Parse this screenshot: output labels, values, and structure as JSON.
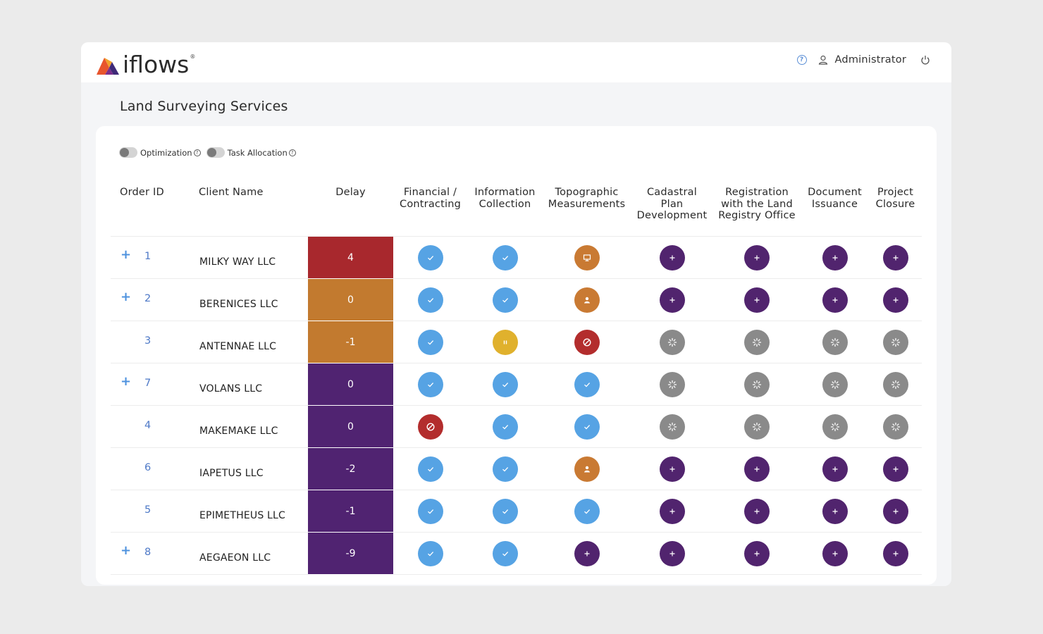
{
  "header": {
    "logo_text": "iflows",
    "logo_mark": "®",
    "help_icon": "help-icon",
    "user_icon": "user-icon",
    "username": "Administrator",
    "logout_icon": "power-icon"
  },
  "page": {
    "title": "Land Surveying Services"
  },
  "toggles": [
    {
      "label": "Optimization",
      "on": false
    },
    {
      "label": "Task Allocation",
      "on": false
    }
  ],
  "columns": {
    "order_id": "Order ID",
    "client_name": "Client Name",
    "delay": "Delay",
    "steps": [
      [
        "Financial /",
        "Contracting"
      ],
      [
        "Information",
        "Collection"
      ],
      [
        "Topographic",
        "Measurements"
      ],
      [
        "Cadastral",
        "Plan",
        "Development"
      ],
      [
        "Registration",
        "with the Land",
        "Registry Office"
      ],
      [
        "Document",
        "Issuance"
      ],
      [
        "Project",
        "Closure"
      ]
    ]
  },
  "status_colors": {
    "done": "#56a3e4",
    "pending": "#51246e",
    "waiting": "#8a8a8a",
    "review": "#c97a33",
    "assigned": "#c97a33",
    "blocked": "#b32d2d",
    "paused": "#e0b12d"
  },
  "delay_colors": {
    "red": "#a8282d",
    "orange": "#c27a2f",
    "purple": "#502371"
  },
  "rows": [
    {
      "expandable": true,
      "order_id": "1",
      "client": "MILKY WAY LLC",
      "delay": "4",
      "delay_color": "red",
      "steps": [
        "done",
        "done",
        "review",
        "pending",
        "pending",
        "pending",
        "pending"
      ]
    },
    {
      "expandable": true,
      "order_id": "2",
      "client": "BERENICES LLC",
      "delay": "0",
      "delay_color": "orange",
      "steps": [
        "done",
        "done",
        "assigned",
        "pending",
        "pending",
        "pending",
        "pending"
      ]
    },
    {
      "expandable": false,
      "order_id": "3",
      "client": "ANTENNAE LLC",
      "delay": "-1",
      "delay_color": "orange",
      "steps": [
        "done",
        "paused",
        "blocked",
        "waiting",
        "waiting",
        "waiting",
        "waiting"
      ]
    },
    {
      "expandable": true,
      "order_id": "7",
      "client": "VOLANS LLC",
      "delay": "0",
      "delay_color": "purple",
      "steps": [
        "done",
        "done",
        "done",
        "waiting",
        "waiting",
        "waiting",
        "waiting"
      ]
    },
    {
      "expandable": false,
      "order_id": "4",
      "client": "MAKEMAKE LLC",
      "delay": "0",
      "delay_color": "purple",
      "steps": [
        "blocked",
        "done",
        "done",
        "waiting",
        "waiting",
        "waiting",
        "waiting"
      ]
    },
    {
      "expandable": false,
      "order_id": "6",
      "client": "IAPETUS LLC",
      "delay": "-2",
      "delay_color": "purple",
      "steps": [
        "done",
        "done",
        "assigned",
        "pending",
        "pending",
        "pending",
        "pending"
      ]
    },
    {
      "expandable": false,
      "order_id": "5",
      "client": "EPIMETHEUS LLC",
      "delay": "-1",
      "delay_color": "purple",
      "steps": [
        "done",
        "done",
        "done",
        "pending",
        "pending",
        "pending",
        "pending"
      ]
    },
    {
      "expandable": true,
      "order_id": "8",
      "client": "AEGAEON LLC",
      "delay": "-9",
      "delay_color": "purple",
      "steps": [
        "done",
        "done",
        "pending",
        "pending",
        "pending",
        "pending",
        "pending"
      ]
    }
  ]
}
